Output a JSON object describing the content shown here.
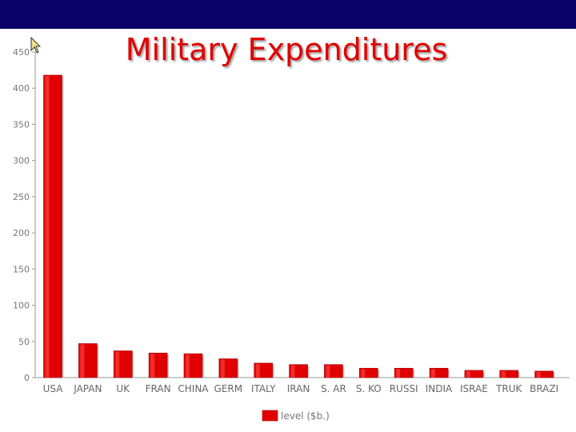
{
  "slide": {
    "title": "Military Expenditures"
  },
  "icons": {
    "cursor": "mouse-pointer-icon"
  },
  "colors": {
    "header_bar": "#0a0066",
    "title": "#e00000",
    "bar": "#e00000"
  },
  "chart_data": {
    "type": "bar",
    "title": "",
    "xlabel": "",
    "ylabel": "",
    "ylim": [
      0,
      450
    ],
    "yticks": [
      0,
      50,
      100,
      150,
      200,
      250,
      300,
      350,
      400,
      450
    ],
    "grid": false,
    "legend": "bottom-center",
    "categories": [
      "USA",
      "JAPAN",
      "UK",
      "FRAN",
      "CHINA",
      "GERM",
      "ITALY",
      "IRAN",
      "S. AR",
      "S. KO",
      "RUSSI",
      "INDIA",
      "ISRAE",
      "TRUK",
      "BRAZI"
    ],
    "series": [
      {
        "name": "level ($b.)",
        "values": [
          418,
          47,
          37,
          34,
          33,
          26,
          20,
          18,
          18,
          13,
          13,
          13,
          10,
          10,
          9
        ]
      }
    ]
  }
}
